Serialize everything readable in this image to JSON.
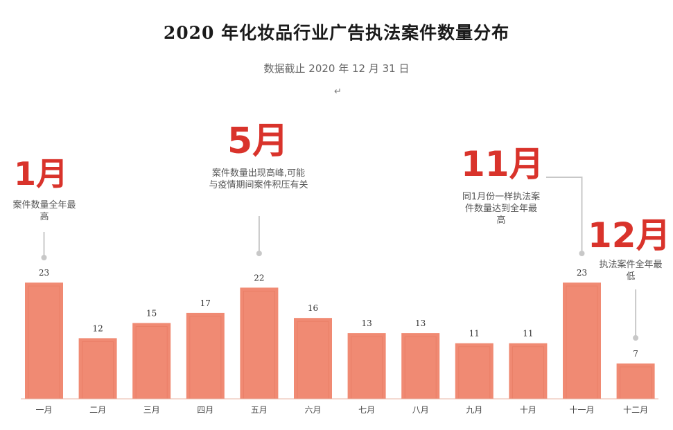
{
  "chart_data": {
    "type": "bar",
    "title": "2020 年化妆品行业广告执法案件数量分布",
    "subtitle": "数据截止 2020 年 12 月 31 日",
    "categories": [
      "一月",
      "二月",
      "三月",
      "四月",
      "五月",
      "六月",
      "七月",
      "八月",
      "九月",
      "十月",
      "十一月",
      "十二月"
    ],
    "values": [
      23,
      12,
      15,
      17,
      22,
      16,
      13,
      13,
      11,
      11,
      23,
      7
    ],
    "ylim": [
      0,
      25
    ],
    "grid": false,
    "bar_color": "#f08a73",
    "annotations": [
      {
        "month_index": 0,
        "big": "1月",
        "text": "案件数量全年最高"
      },
      {
        "month_index": 4,
        "big": "5月",
        "text": "案件数量出现高峰,可能与疫情期间案件积压有关"
      },
      {
        "month_index": 10,
        "big": "11月",
        "text": "同1月份一样执法案件数量达到全年最高"
      },
      {
        "month_index": 11,
        "big": "12月",
        "text": "执法案件全年最低"
      }
    ]
  },
  "colors": {
    "accent": "#d9332b",
    "bar": "#f08a73",
    "bar_edge": "#e37358",
    "text_dark": "#1a1a1a",
    "text_gray": "#555555"
  }
}
